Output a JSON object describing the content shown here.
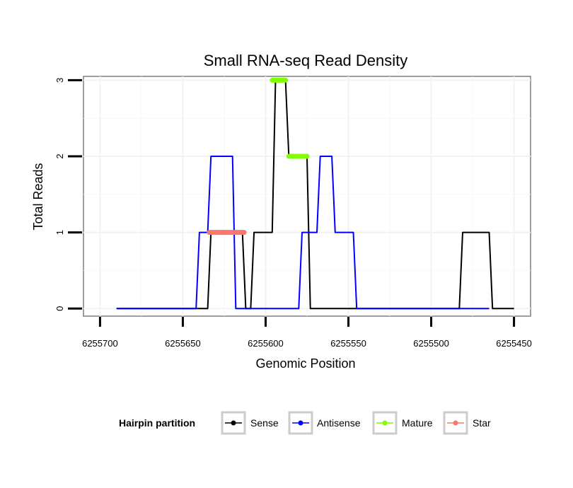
{
  "chart_data": {
    "type": "line",
    "title": "Small RNA-seq Read Density",
    "xlabel": "Genomic Position",
    "ylabel": "Total Reads",
    "x_reversed": true,
    "xlim": [
      6255710,
      6255440
    ],
    "ylim": [
      -0.1,
      3.05
    ],
    "x_ticks": [
      6255700,
      6255650,
      6255600,
      6255550,
      6255500,
      6255450
    ],
    "x_tick_labels": [
      "6255700",
      "6255650",
      "6255600",
      "6255550",
      "6255500",
      "6255450"
    ],
    "y_ticks": [
      0,
      1,
      2,
      3
    ],
    "y_tick_labels": [
      "0",
      "1",
      "2",
      "3"
    ],
    "grid": true,
    "series": [
      {
        "name": "Sense",
        "color": "#000000",
        "x": [
          6255690,
          6255635,
          6255633,
          6255614,
          6255612,
          6255609,
          6255607,
          6255596,
          6255594,
          6255588,
          6255586,
          6255575,
          6255573,
          6255483,
          6255481,
          6255465,
          6255463,
          6255450
        ],
        "y": [
          0,
          0,
          1,
          1,
          0,
          0,
          1,
          1,
          3,
          3,
          2,
          2,
          0,
          0,
          1,
          1,
          0,
          0
        ]
      },
      {
        "name": "Antisense",
        "color": "#0000ff",
        "x": [
          6255690,
          6255642,
          6255640,
          6255635,
          6255633,
          6255620,
          6255618,
          6255580,
          6255578,
          6255569,
          6255567,
          6255560,
          6255558,
          6255547,
          6255545,
          6255465
        ],
        "y": [
          0,
          0,
          1,
          1,
          2,
          2,
          0,
          0,
          1,
          1,
          2,
          2,
          1,
          1,
          0,
          0
        ]
      },
      {
        "name": "Mature",
        "color": "#7fff00",
        "segments": [
          {
            "x": [
              6255596,
              6255588
            ],
            "y": [
              3,
              3
            ]
          },
          {
            "x": [
              6255586,
              6255575
            ],
            "y": [
              2,
              2
            ]
          }
        ]
      },
      {
        "name": "Star",
        "color": "#f8766d",
        "segments": [
          {
            "x": [
              6255634,
              6255613
            ],
            "y": [
              1,
              1
            ]
          }
        ]
      }
    ],
    "legend": {
      "title": "Hairpin partition",
      "position": "bottom",
      "entries": [
        "Sense",
        "Antisense",
        "Mature",
        "Star"
      ]
    }
  }
}
